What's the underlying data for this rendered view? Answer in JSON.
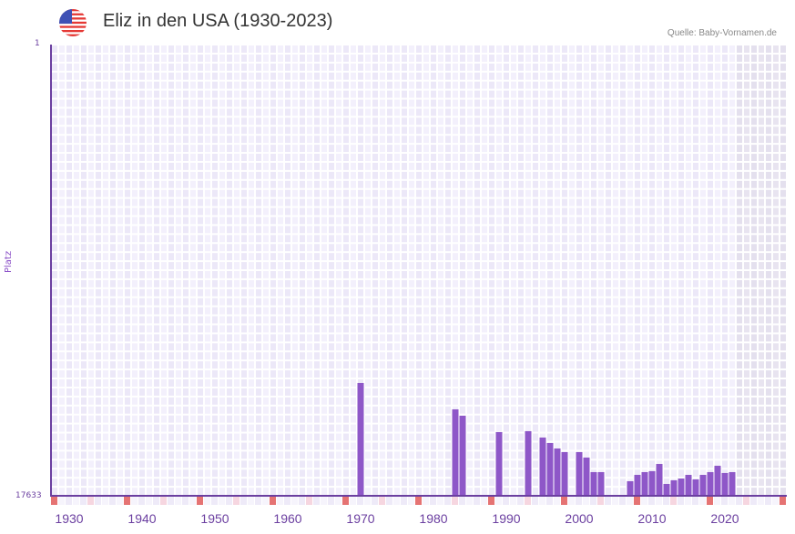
{
  "header": {
    "title": "Eliz in den USA (1930-2023)",
    "source": "Quelle: Baby-Vornamen.de",
    "flag_icon": "us-flag-icon"
  },
  "colors": {
    "bar": "#8e57c8",
    "axis": "#6b3fa0",
    "grid_dark": "#ece8f8",
    "grid_light": "#f3f0fc",
    "shade": "#e4e0ee",
    "marker_red": "#e57373",
    "marker_pink": "#f6d6e0"
  },
  "chart_data": {
    "type": "bar",
    "title": "Eliz in den USA (1930-2023)",
    "xlabel": "",
    "ylabel": "Platz",
    "y_inverted": true,
    "ylim": [
      17633,
      1
    ],
    "y_ticks": [
      "1",
      "17633"
    ],
    "x_ticks": [
      "1930",
      "1940",
      "1950",
      "1960",
      "1970",
      "1980",
      "1990",
      "2000",
      "2010",
      "2020"
    ],
    "x_range": [
      1928,
      2028
    ],
    "shaded_from": 2022,
    "grid": true,
    "categories": [
      1970,
      1983,
      1984,
      1989,
      1993,
      1995,
      1996,
      1997,
      1998,
      2000,
      2001,
      2002,
      2003,
      2007,
      2008,
      2009,
      2010,
      2011,
      2012,
      2013,
      2014,
      2015,
      2016,
      2017,
      2018,
      2019,
      2020,
      2021
    ],
    "values": [
      13224,
      14255,
      14504,
      15144,
      15108,
      15357,
      15571,
      15784,
      15926,
      15926,
      16139,
      16708,
      16708,
      17063,
      16815,
      16708,
      16672,
      16388,
      17170,
      17027,
      16957,
      16815,
      16992,
      16815,
      16708,
      16459,
      16743,
      16708
    ]
  }
}
